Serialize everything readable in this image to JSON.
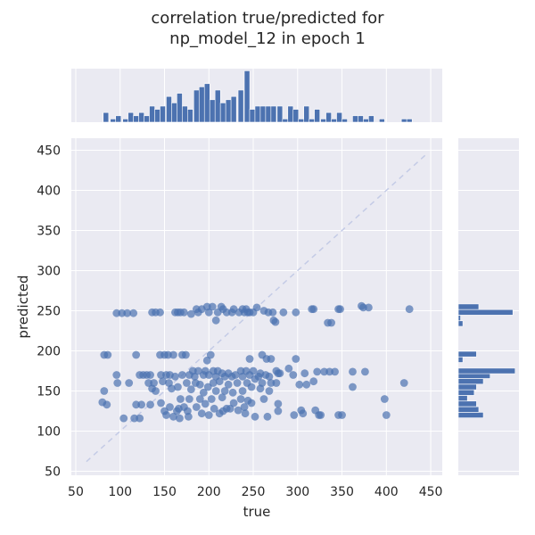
{
  "chart_data": {
    "type": "scatter",
    "title": [
      "correlation true/predicted for",
      "np_model_12 in epoch 1"
    ],
    "xlabel": "true",
    "ylabel": "predicted",
    "xlim": [
      45,
      463
    ],
    "ylim": [
      45,
      465
    ],
    "xticks": [
      50,
      100,
      150,
      200,
      250,
      300,
      350,
      400,
      450
    ],
    "yticks": [
      50,
      100,
      150,
      200,
      250,
      300,
      350,
      400,
      450
    ],
    "grid": true,
    "identity_line": {
      "from": [
        62,
        62
      ],
      "to": [
        445,
        445
      ],
      "color": "#c4cbe6"
    },
    "colors": {
      "points": "#4c72b0",
      "bars": "#4c72b0",
      "axes_bg": "#eaeaf2",
      "grid": "#ffffff"
    },
    "marginal_x_counts": [
      {
        "x": 84,
        "c": 3
      },
      {
        "x": 92,
        "c": 1
      },
      {
        "x": 98,
        "c": 2
      },
      {
        "x": 106,
        "c": 1
      },
      {
        "x": 112,
        "c": 3
      },
      {
        "x": 118,
        "c": 2
      },
      {
        "x": 124,
        "c": 3
      },
      {
        "x": 130,
        "c": 2
      },
      {
        "x": 136,
        "c": 5
      },
      {
        "x": 142,
        "c": 4
      },
      {
        "x": 148,
        "c": 5
      },
      {
        "x": 155,
        "c": 8
      },
      {
        "x": 161,
        "c": 6
      },
      {
        "x": 167,
        "c": 9
      },
      {
        "x": 173,
        "c": 5
      },
      {
        "x": 179,
        "c": 4
      },
      {
        "x": 186,
        "c": 10
      },
      {
        "x": 192,
        "c": 11
      },
      {
        "x": 198,
        "c": 12
      },
      {
        "x": 204,
        "c": 7
      },
      {
        "x": 210,
        "c": 10
      },
      {
        "x": 216,
        "c": 6
      },
      {
        "x": 222,
        "c": 7
      },
      {
        "x": 228,
        "c": 8
      },
      {
        "x": 236,
        "c": 10
      },
      {
        "x": 243,
        "c": 16
      },
      {
        "x": 249,
        "c": 4
      },
      {
        "x": 255,
        "c": 5
      },
      {
        "x": 261,
        "c": 5
      },
      {
        "x": 267,
        "c": 5
      },
      {
        "x": 273,
        "c": 5
      },
      {
        "x": 280,
        "c": 5
      },
      {
        "x": 286,
        "c": 1
      },
      {
        "x": 292,
        "c": 5
      },
      {
        "x": 298,
        "c": 4
      },
      {
        "x": 304,
        "c": 1
      },
      {
        "x": 310,
        "c": 5
      },
      {
        "x": 316,
        "c": 1
      },
      {
        "x": 322,
        "c": 4
      },
      {
        "x": 329,
        "c": 1
      },
      {
        "x": 335,
        "c": 3
      },
      {
        "x": 341,
        "c": 1
      },
      {
        "x": 347,
        "c": 3
      },
      {
        "x": 353,
        "c": 1
      },
      {
        "x": 365,
        "c": 2
      },
      {
        "x": 371,
        "c": 2
      },
      {
        "x": 377,
        "c": 1
      },
      {
        "x": 383,
        "c": 2
      },
      {
        "x": 395,
        "c": 1
      },
      {
        "x": 420,
        "c": 1
      },
      {
        "x": 426,
        "c": 1
      }
    ],
    "marginal_y_counts": [
      {
        "y": 120,
        "c": 11
      },
      {
        "y": 127,
        "c": 9
      },
      {
        "y": 134,
        "c": 8
      },
      {
        "y": 141,
        "c": 4
      },
      {
        "y": 148,
        "c": 7
      },
      {
        "y": 155,
        "c": 8
      },
      {
        "y": 162,
        "c": 11
      },
      {
        "y": 169,
        "c": 14
      },
      {
        "y": 175,
        "c": 25
      },
      {
        "y": 189,
        "c": 2
      },
      {
        "y": 196,
        "c": 8
      },
      {
        "y": 234,
        "c": 2
      },
      {
        "y": 241,
        "c": 1
      },
      {
        "y": 248,
        "c": 24
      },
      {
        "y": 255,
        "c": 9
      }
    ],
    "points": [
      [
        82,
        195
      ],
      [
        86,
        195
      ],
      [
        80,
        136
      ],
      [
        82,
        150
      ],
      [
        85,
        133
      ],
      [
        96,
        247
      ],
      [
        96,
        170
      ],
      [
        97,
        160
      ],
      [
        102,
        247
      ],
      [
        104,
        116
      ],
      [
        108,
        247
      ],
      [
        110,
        160
      ],
      [
        115,
        247
      ],
      [
        116,
        116
      ],
      [
        118,
        195
      ],
      [
        118,
        133
      ],
      [
        122,
        170
      ],
      [
        122,
        116
      ],
      [
        124,
        133
      ],
      [
        126,
        170
      ],
      [
        130,
        170
      ],
      [
        132,
        160
      ],
      [
        134,
        170
      ],
      [
        134,
        133
      ],
      [
        136,
        248
      ],
      [
        136,
        153
      ],
      [
        138,
        160
      ],
      [
        140,
        248
      ],
      [
        140,
        150
      ],
      [
        145,
        248
      ],
      [
        145,
        195
      ],
      [
        146,
        170
      ],
      [
        146,
        135
      ],
      [
        148,
        162
      ],
      [
        150,
        195
      ],
      [
        150,
        125
      ],
      [
        152,
        170
      ],
      [
        152,
        120
      ],
      [
        154,
        195
      ],
      [
        155,
        160
      ],
      [
        156,
        170
      ],
      [
        156,
        130
      ],
      [
        158,
        153
      ],
      [
        160,
        195
      ],
      [
        160,
        118
      ],
      [
        162,
        248
      ],
      [
        162,
        168
      ],
      [
        164,
        125
      ],
      [
        165,
        248
      ],
      [
        165,
        155
      ],
      [
        166,
        128
      ],
      [
        167,
        116
      ],
      [
        168,
        248
      ],
      [
        168,
        140
      ],
      [
        170,
        195
      ],
      [
        170,
        170
      ],
      [
        172,
        248
      ],
      [
        172,
        130
      ],
      [
        174,
        195
      ],
      [
        175,
        160
      ],
      [
        176,
        125
      ],
      [
        177,
        118
      ],
      [
        178,
        170
      ],
      [
        178,
        140
      ],
      [
        180,
        246
      ],
      [
        180,
        152
      ],
      [
        182,
        175
      ],
      [
        184,
        168
      ],
      [
        185,
        160
      ],
      [
        186,
        252
      ],
      [
        186,
        130
      ],
      [
        188,
        248
      ],
      [
        188,
        175
      ],
      [
        190,
        158
      ],
      [
        190,
        140
      ],
      [
        192,
        252
      ],
      [
        192,
        122
      ],
      [
        194,
        170
      ],
      [
        194,
        148
      ],
      [
        196,
        175
      ],
      [
        196,
        134
      ],
      [
        198,
        255
      ],
      [
        198,
        188
      ],
      [
        199,
        155
      ],
      [
        200,
        248
      ],
      [
        200,
        170
      ],
      [
        200,
        120
      ],
      [
        202,
        195
      ],
      [
        203,
        140
      ],
      [
        204,
        255
      ],
      [
        205,
        175
      ],
      [
        205,
        160
      ],
      [
        206,
        128
      ],
      [
        208,
        238
      ],
      [
        208,
        168
      ],
      [
        208,
        150
      ],
      [
        210,
        248
      ],
      [
        210,
        175
      ],
      [
        212,
        162
      ],
      [
        212,
        122
      ],
      [
        214,
        255
      ],
      [
        215,
        172
      ],
      [
        215,
        142
      ],
      [
        216,
        252
      ],
      [
        216,
        125
      ],
      [
        218,
        168
      ],
      [
        218,
        150
      ],
      [
        220,
        248
      ],
      [
        220,
        128
      ],
      [
        222,
        172
      ],
      [
        222,
        158
      ],
      [
        224,
        128
      ],
      [
        226,
        248
      ],
      [
        226,
        168
      ],
      [
        227,
        148
      ],
      [
        228,
        252
      ],
      [
        228,
        135
      ],
      [
        230,
        170
      ],
      [
        232,
        160
      ],
      [
        233,
        126
      ],
      [
        234,
        248
      ],
      [
        236,
        175
      ],
      [
        236,
        140
      ],
      [
        238,
        252
      ],
      [
        238,
        168
      ],
      [
        238,
        150
      ],
      [
        240,
        248
      ],
      [
        240,
        130
      ],
      [
        241,
        122
      ],
      [
        242,
        252
      ],
      [
        242,
        175
      ],
      [
        243,
        160
      ],
      [
        244,
        248
      ],
      [
        244,
        138
      ],
      [
        246,
        248
      ],
      [
        246,
        190
      ],
      [
        246,
        170
      ],
      [
        248,
        155
      ],
      [
        248,
        135
      ],
      [
        250,
        248
      ],
      [
        250,
        175
      ],
      [
        252,
        165
      ],
      [
        252,
        118
      ],
      [
        254,
        254
      ],
      [
        256,
        168
      ],
      [
        258,
        172
      ],
      [
        258,
        153
      ],
      [
        260,
        195
      ],
      [
        260,
        160
      ],
      [
        262,
        250
      ],
      [
        262,
        140
      ],
      [
        264,
        170
      ],
      [
        265,
        190
      ],
      [
        266,
        118
      ],
      [
        267,
        248
      ],
      [
        268,
        168
      ],
      [
        268,
        150
      ],
      [
        270,
        190
      ],
      [
        270,
        160
      ],
      [
        272,
        248
      ],
      [
        273,
        238
      ],
      [
        275,
        236
      ],
      [
        276,
        175
      ],
      [
        276,
        160
      ],
      [
        278,
        172
      ],
      [
        278,
        125
      ],
      [
        278,
        134
      ],
      [
        280,
        172
      ],
      [
        284,
        248
      ],
      [
        290,
        178
      ],
      [
        295,
        170
      ],
      [
        296,
        120
      ],
      [
        298,
        190
      ],
      [
        298,
        248
      ],
      [
        302,
        158
      ],
      [
        304,
        126
      ],
      [
        306,
        122
      ],
      [
        308,
        172
      ],
      [
        310,
        158
      ],
      [
        316,
        252
      ],
      [
        318,
        252
      ],
      [
        318,
        162
      ],
      [
        320,
        126
      ],
      [
        322,
        174
      ],
      [
        324,
        120
      ],
      [
        326,
        120
      ],
      [
        330,
        174
      ],
      [
        334,
        235
      ],
      [
        336,
        174
      ],
      [
        338,
        235
      ],
      [
        342,
        174
      ],
      [
        346,
        252
      ],
      [
        346,
        120
      ],
      [
        348,
        252
      ],
      [
        350,
        120
      ],
      [
        362,
        174
      ],
      [
        362,
        155
      ],
      [
        372,
        256
      ],
      [
        374,
        254
      ],
      [
        376,
        174
      ],
      [
        380,
        254
      ],
      [
        398,
        140
      ],
      [
        400,
        120
      ],
      [
        420,
        160
      ],
      [
        426,
        252
      ]
    ]
  }
}
